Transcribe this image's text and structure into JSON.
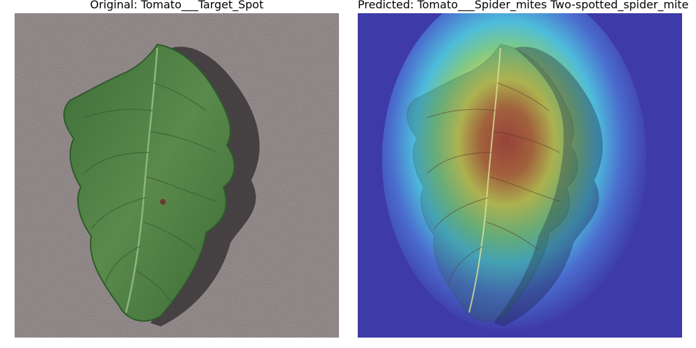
{
  "figure": {
    "left_title": "Original: Tomato___Target_Spot",
    "right_title": "Predicted: Tomato___Spider_mites Two-spotted_spider_mite"
  },
  "images": {
    "left": "tomato leaf photo on grey background",
    "right": "same leaf with Grad-CAM heatmap overlay"
  },
  "colors": {
    "background_stone": "#a39a9a",
    "leaf_green": "#4f7f45",
    "leaf_dark": "#2f5a2c",
    "heat_blue": "#3e3aa7",
    "heat_cyan": "#4fc3dd",
    "heat_yellow": "#e8d94a",
    "heat_red": "#c8352a"
  }
}
